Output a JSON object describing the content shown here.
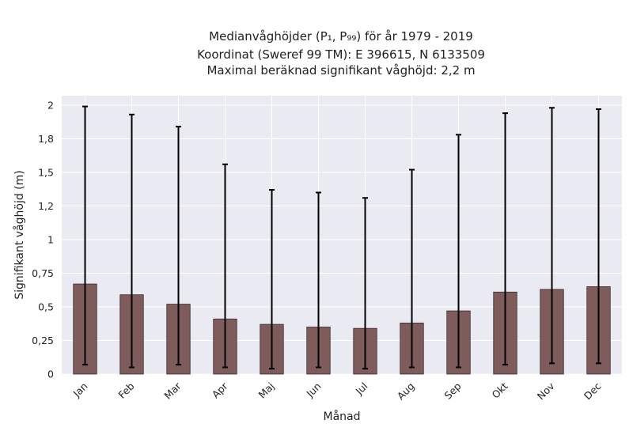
{
  "chart_data": {
    "type": "bar",
    "title_lines": [
      "Medianvåghöjder (P₁, P₉₉) för år 1979 - 2019",
      "Koordinat (Sweref 99 TM): E 396615, N 6133509",
      "Maximal beräknad signifikant våghöjd: 2,2 m"
    ],
    "xlabel": "Månad",
    "ylabel": "Signifikant våghöjd (m)",
    "categories": [
      "Jan",
      "Feb",
      "Mar",
      "Apr",
      "Maj",
      "Jun",
      "Jul",
      "Aug",
      "Sep",
      "Okt",
      "Nov",
      "Dec"
    ],
    "values": [
      0.67,
      0.59,
      0.52,
      0.41,
      0.37,
      0.35,
      0.34,
      0.38,
      0.47,
      0.61,
      0.63,
      0.65
    ],
    "error_low": [
      0.07,
      0.05,
      0.07,
      0.05,
      0.04,
      0.05,
      0.04,
      0.05,
      0.05,
      0.07,
      0.08,
      0.08
    ],
    "error_high": [
      1.99,
      1.93,
      1.84,
      1.56,
      1.37,
      1.35,
      1.31,
      1.52,
      1.78,
      1.94,
      1.98,
      1.97
    ],
    "ylim": [
      0,
      2.07
    ],
    "yticks": [
      0,
      0.25,
      0.5,
      0.75,
      1,
      1.25,
      1.5,
      1.75,
      2
    ],
    "ytick_labels": [
      "0",
      "0,25",
      "0,5",
      "0,75",
      "1",
      "1,2",
      "1,5",
      "1,8",
      "2"
    ],
    "grid": true,
    "colors": {
      "bar": "#7f5c5c",
      "bar_edge": "#3a2a2a",
      "error": "#000000",
      "plot_background": "#eaeaf2",
      "grid": "#ffffff"
    }
  }
}
